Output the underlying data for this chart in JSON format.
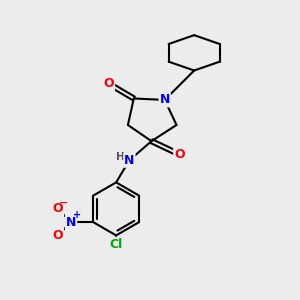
{
  "background_color": "#ececec",
  "bond_color": "#000000",
  "atom_colors": {
    "O": "#ff0000",
    "N": "#0000ff",
    "Cl": "#00aa00",
    "C": "#000000",
    "H": "#555555"
  },
  "figsize": [
    3.0,
    3.0
  ],
  "dpi": 100,
  "xlim": [
    0,
    10
  ],
  "ylim": [
    0,
    10
  ]
}
